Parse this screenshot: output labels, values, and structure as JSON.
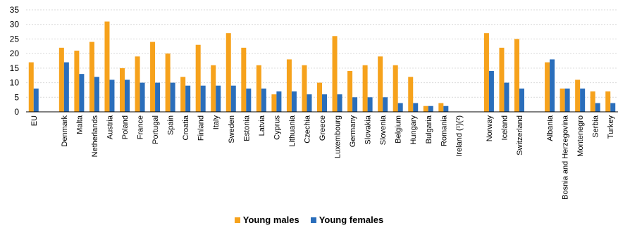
{
  "chart_data": {
    "type": "bar",
    "ylim": [
      0,
      35
    ],
    "yticks": [
      0,
      5,
      10,
      15,
      20,
      25,
      30,
      35
    ],
    "grid": true,
    "legend_position": "bottom",
    "categories": [
      "EU",
      "",
      "Denmark",
      "Malta",
      "Netherlands",
      "Austria",
      "Poland",
      "France",
      "Portugal",
      "Spain",
      "Croatia",
      "Finland",
      "Italy",
      "Sweden",
      "Estonia",
      "Latvia",
      "Cyprus",
      "Lithuania",
      "Czechia",
      "Greece",
      "Luxembourg",
      "Germany",
      "Slovakia",
      "Slovenia",
      "Belgium",
      "Hungary",
      "Bulgaria",
      "Romania",
      "Ireland (¹)(²)",
      "",
      "Norway",
      "Iceland",
      "Switzerland",
      "",
      "Albania",
      "Bosnia and Herzegovina",
      "Montenegro",
      "Serbia",
      "Turkey"
    ],
    "series": [
      {
        "name": "Young males",
        "color": "#F6A21C",
        "values": [
          17,
          null,
          22,
          21,
          24,
          31,
          15,
          19,
          24,
          20,
          12,
          23,
          16,
          27,
          22,
          16,
          6,
          18,
          16,
          10,
          26,
          14,
          16,
          19,
          16,
          12,
          2,
          3,
          null,
          null,
          27,
          22,
          25,
          null,
          17,
          8,
          11,
          7,
          7
        ]
      },
      {
        "name": "Young females",
        "color": "#2A6EBB",
        "values": [
          8,
          null,
          17,
          13,
          12,
          11,
          11,
          10,
          10,
          10,
          9,
          9,
          9,
          9,
          8,
          8,
          7,
          7,
          6,
          6,
          6,
          5,
          5,
          5,
          3,
          3,
          2,
          2,
          null,
          null,
          14,
          10,
          8,
          null,
          18,
          8,
          8,
          3,
          3
        ]
      }
    ]
  }
}
